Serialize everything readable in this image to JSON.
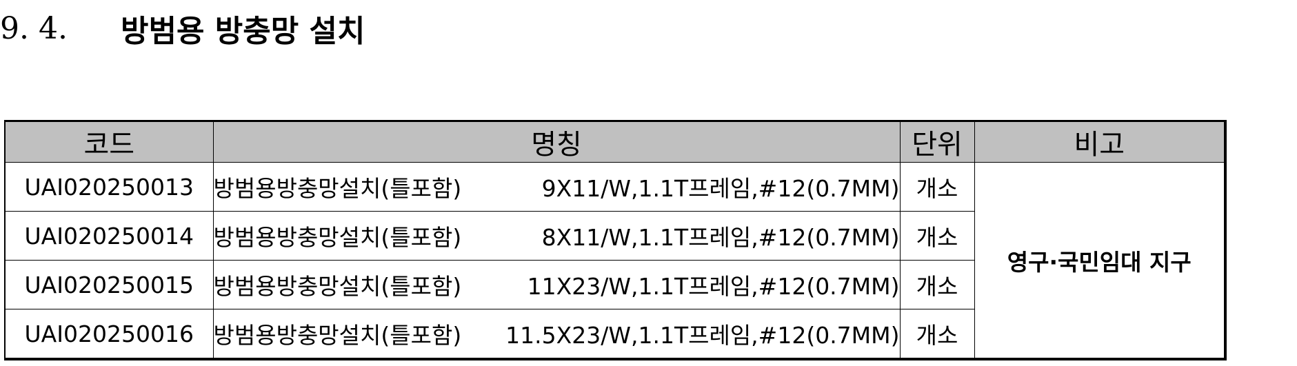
{
  "section": {
    "number": "9. 4.",
    "title": "방범용 방충망 설치"
  },
  "table": {
    "headers": {
      "code": "코드",
      "name": "명칭",
      "unit": "단위",
      "note": "비고"
    },
    "rows": [
      {
        "code": "UAI020250013",
        "name": "방범용방충망설치(틀포함)",
        "spec": "9X11/W,1.1T프레임,#12(0.7MM)",
        "unit": "개소"
      },
      {
        "code": "UAI020250014",
        "name": "방범용방충망설치(틀포함)",
        "spec": "8X11/W,1.1T프레임,#12(0.7MM)",
        "unit": "개소"
      },
      {
        "code": "UAI020250015",
        "name": "방범용방충망설치(틀포함)",
        "spec": "11X23/W,1.1T프레임,#12(0.7MM)",
        "unit": "개소"
      },
      {
        "code": "UAI020250016",
        "name": "방범용방충망설치(틀포함)",
        "spec": "11.5X23/W,1.1T프레임,#12(0.7MM)",
        "unit": "개소"
      }
    ],
    "note": "영구·국민임대 지구"
  }
}
